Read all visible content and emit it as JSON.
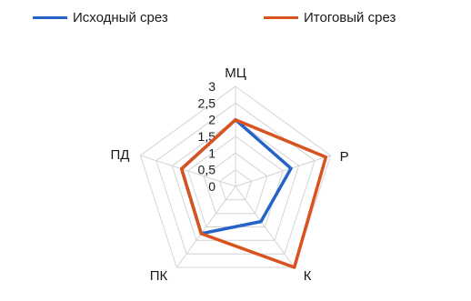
{
  "chart_data": {
    "type": "radar",
    "axes": [
      "МЦ",
      "Р",
      "К",
      "ПК",
      "ПД"
    ],
    "ticks": [
      "0",
      "0,5",
      "1",
      "1,5",
      "2",
      "2,5",
      "3"
    ],
    "range": [
      0,
      3
    ],
    "grid": true,
    "legend_position": "top",
    "series": [
      {
        "name": "Исходный срез",
        "color": "#2563c9",
        "values": [
          2,
          1.75,
          1.3,
          1.75,
          1.7
        ]
      },
      {
        "name": "Итоговый срез",
        "color": "#d9531e",
        "values": [
          2,
          2.85,
          3.0,
          1.75,
          1.7
        ]
      }
    ]
  }
}
